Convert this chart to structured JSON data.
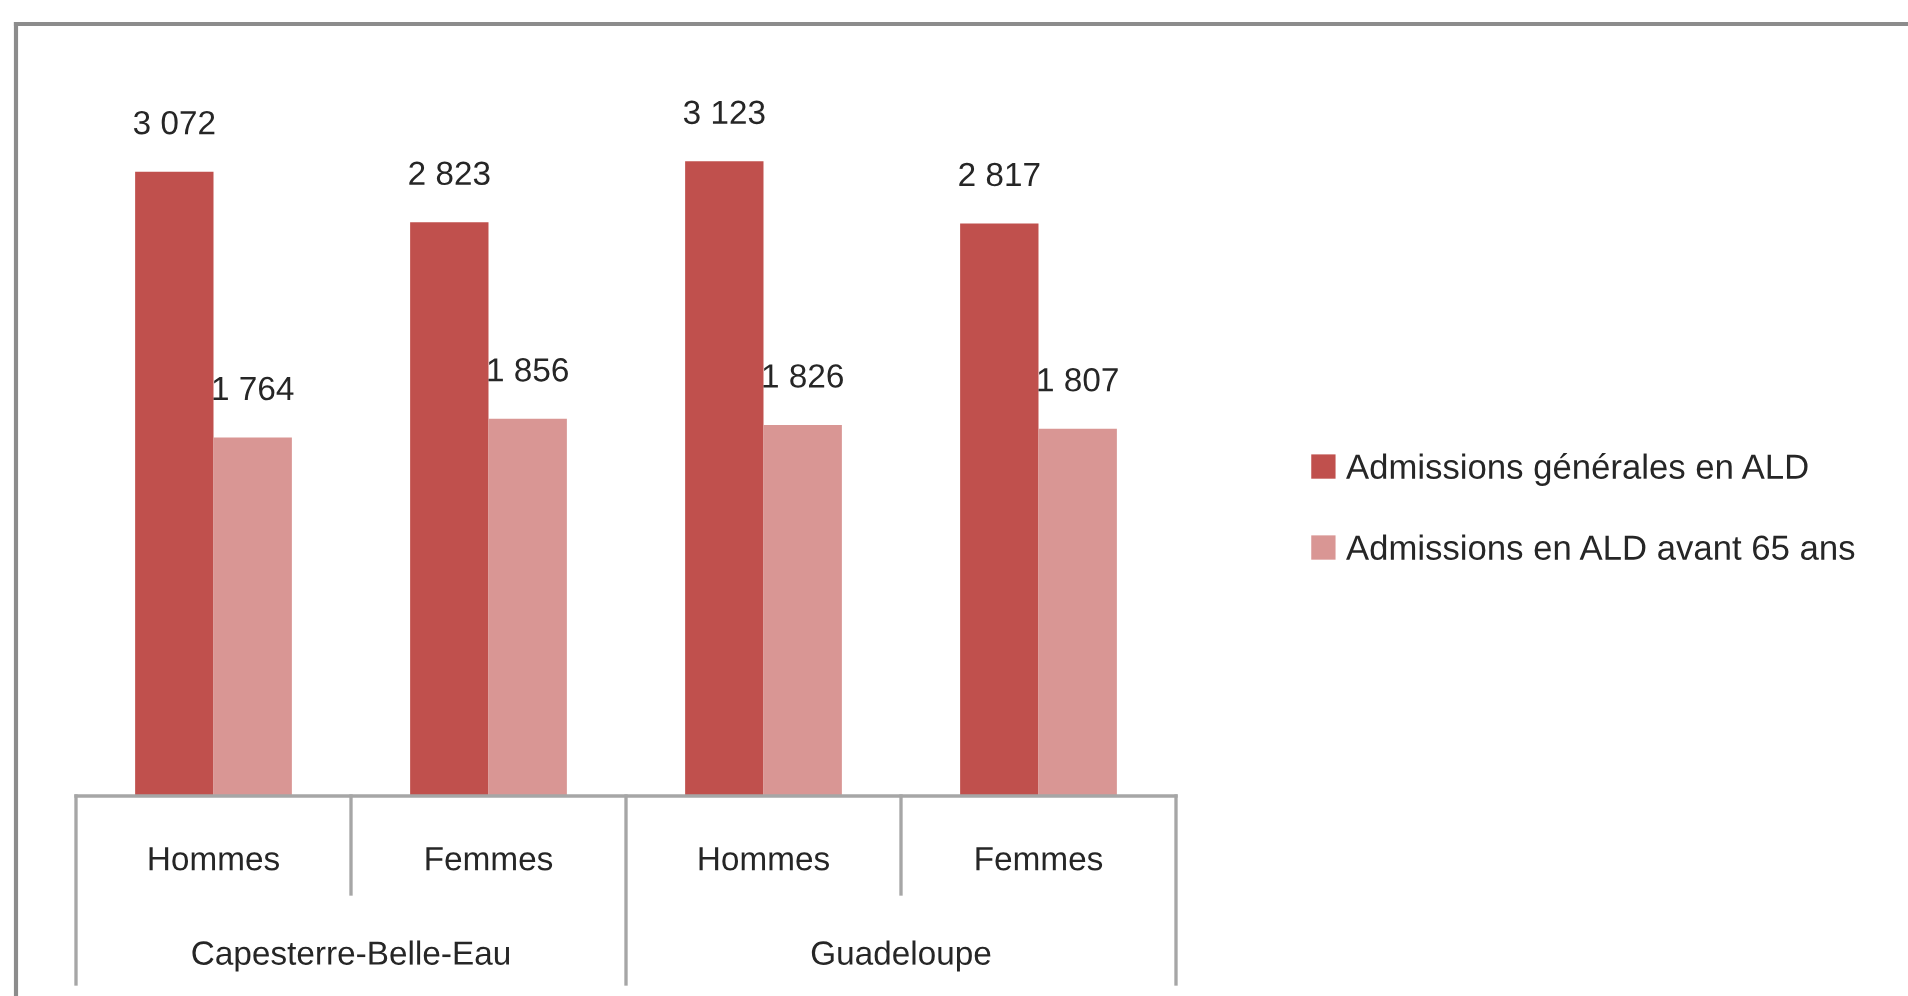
{
  "chart_data": {
    "type": "bar",
    "categories": [
      "Hommes",
      "Femmes",
      "Hommes",
      "Femmes"
    ],
    "series": [
      {
        "name": "Admissions générales en ALD",
        "color": "#c0504d",
        "values": [
          3072,
          2823,
          3123,
          2817
        ],
        "value_labels": [
          "3 072",
          "2 823",
          "3 123",
          "2 817"
        ]
      },
      {
        "name": "Admissions en ALD avant 65 ans",
        "color": "#d99694",
        "values": [
          1764,
          1856,
          1826,
          1807
        ],
        "value_labels": [
          "1 764",
          "1 856",
          "1 826",
          "1 807"
        ]
      }
    ],
    "annotations": [
      "Capesterre-Belle-Eau",
      "Guadeloupe"
    ],
    "legend": "right"
  }
}
